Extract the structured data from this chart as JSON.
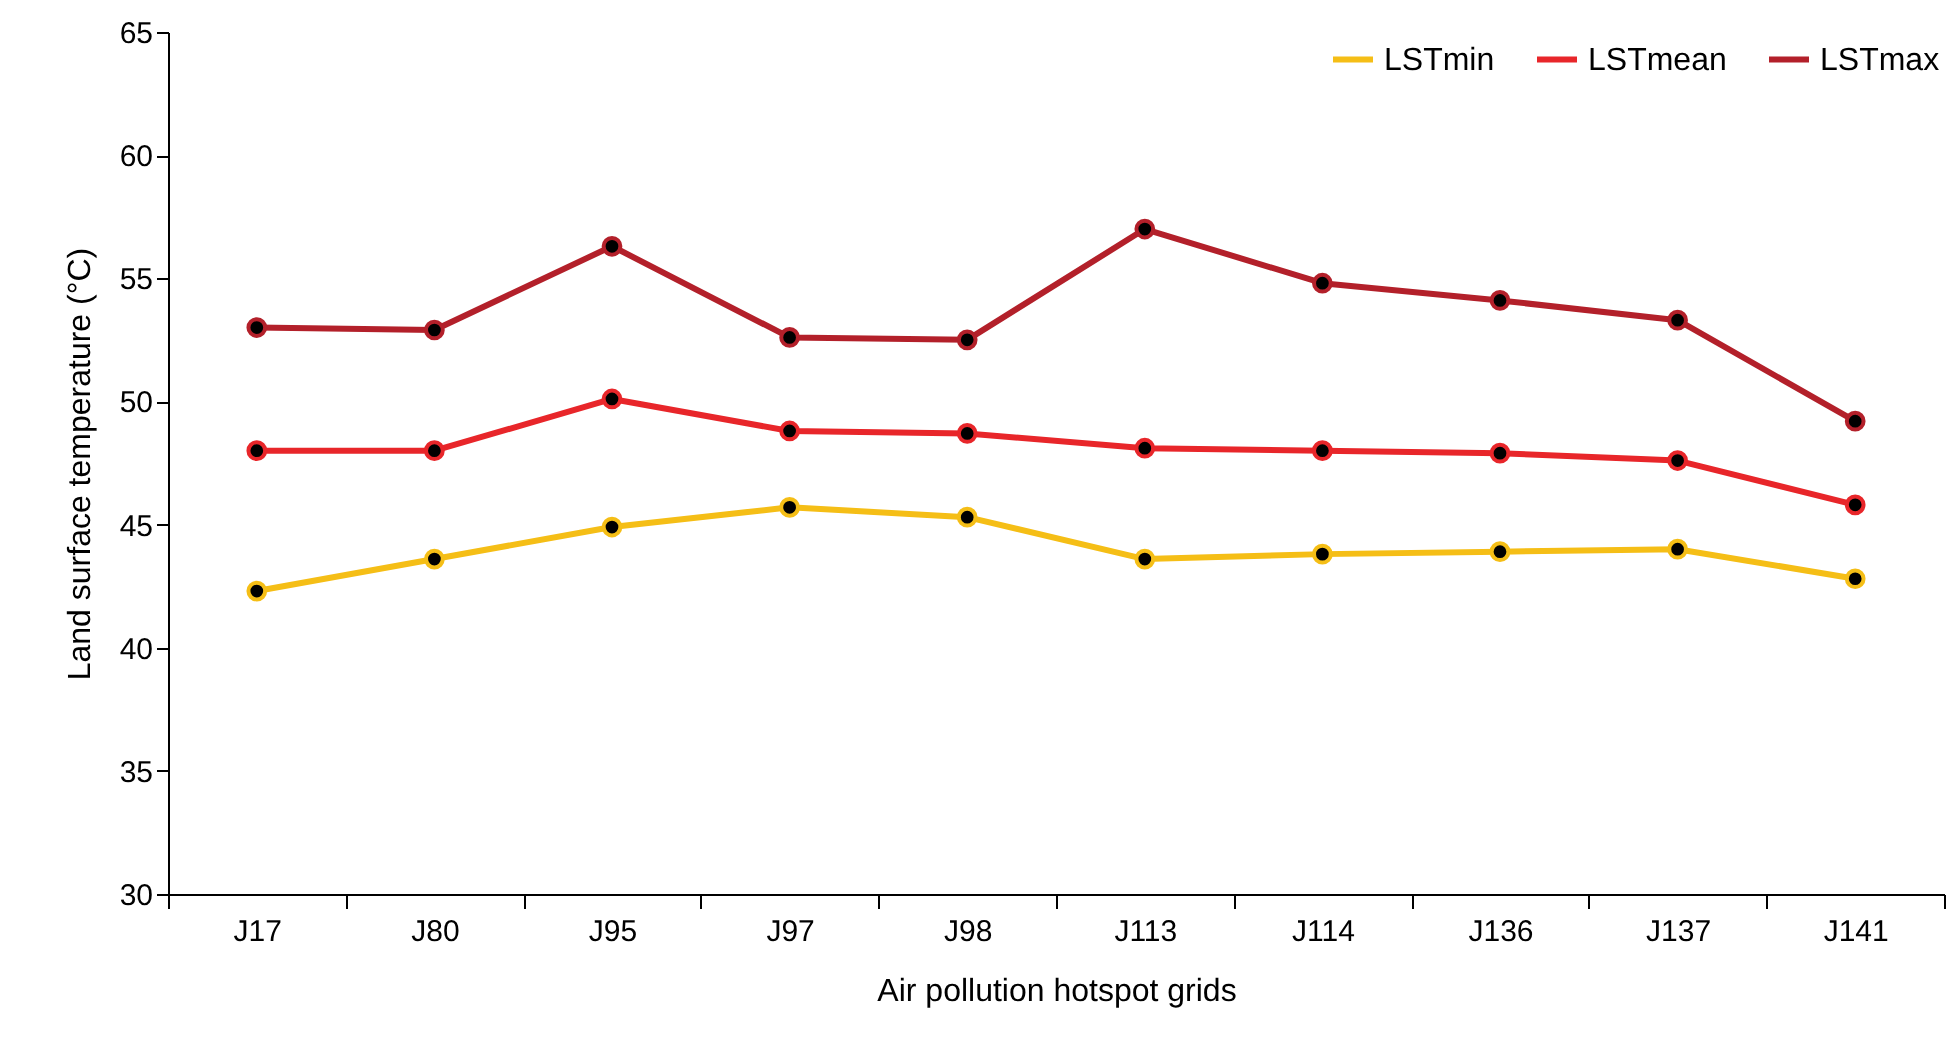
{
  "chart_data": {
    "type": "line",
    "xlabel": "Air pollution hotspot grids",
    "ylabel": "Land surface temperature (°C)",
    "categories": [
      "J17",
      "J80",
      "J95",
      "J97",
      "J98",
      "J113",
      "J114",
      "J136",
      "J137",
      "J141"
    ],
    "series": [
      {
        "name": "LSTmin",
        "color": "#f5be16",
        "values": [
          42.3,
          43.6,
          44.9,
          45.7,
          45.3,
          43.6,
          43.8,
          43.9,
          44.0,
          42.8
        ]
      },
      {
        "name": "LSTmean",
        "color": "#e8262a",
        "values": [
          48.0,
          48.0,
          50.1,
          48.8,
          48.7,
          48.1,
          48.0,
          47.9,
          47.6,
          45.8
        ]
      },
      {
        "name": "LSTmax",
        "color": "#b3202a",
        "values": [
          53.0,
          52.9,
          56.3,
          52.6,
          52.5,
          57.0,
          54.8,
          54.1,
          53.3,
          49.2
        ]
      }
    ],
    "ylim": [
      30,
      65
    ],
    "yticks": [
      30,
      35,
      40,
      45,
      50,
      55,
      60,
      65
    ],
    "grid": false,
    "legend": "top right",
    "marker": "circle",
    "line_style": "solid"
  }
}
